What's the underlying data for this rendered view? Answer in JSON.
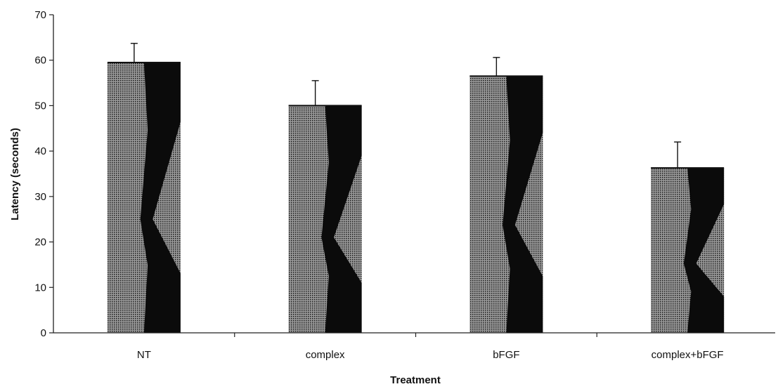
{
  "chart_data": {
    "type": "bar",
    "title": "",
    "xlabel": "Treatment",
    "ylabel": "Latency (seconds)",
    "categories": [
      "NT",
      "complex",
      "bFGF",
      "complex+bFGF"
    ],
    "values": [
      59.5,
      50.0,
      56.5,
      36.3
    ],
    "error_bars": [
      4.2,
      5.5,
      4.1,
      5.7
    ],
    "ylim": [
      0,
      70
    ],
    "yticks": [
      0,
      10,
      20,
      30,
      40,
      50,
      60,
      70
    ],
    "grid": false,
    "legend": "none",
    "bar_pattern": "halftone dot fill with dark diamond hourglass shading",
    "colors": {
      "bar_dark": "#0b0b0b",
      "bar_light": "#8a8a8a",
      "axis": "#222222"
    }
  }
}
